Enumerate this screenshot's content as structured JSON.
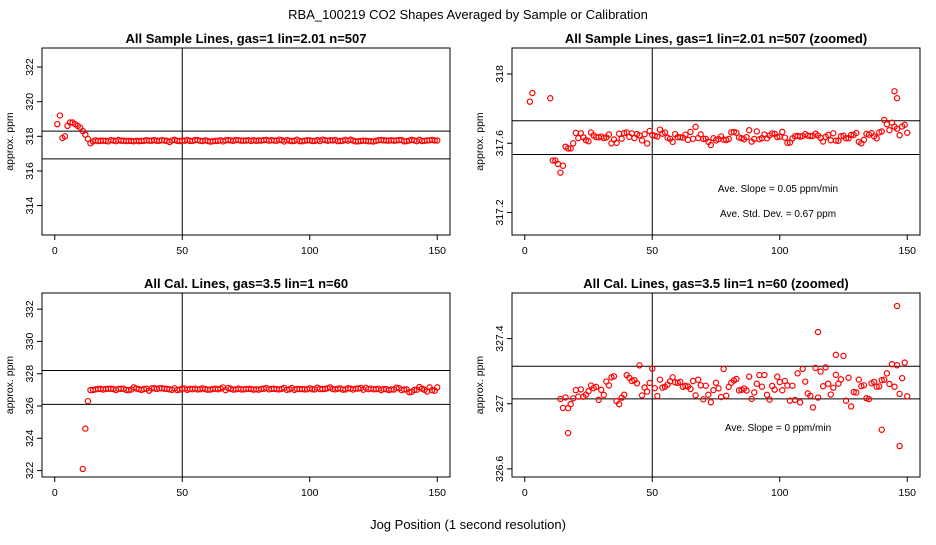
{
  "figure": {
    "title": "RBA_100219  CO2 Shapes Averaged by Sample or Calibration",
    "xlabel": "Jog Position (1 second resolution)"
  },
  "colors": {
    "points": "#ff0000",
    "lines": "#000000",
    "frame": "#000000"
  },
  "chart_data": [
    {
      "type": "scatter",
      "title": "All Sample Lines, gas=1 lin=2.01 n=507",
      "xlabel": "",
      "ylabel": "approx. ppm",
      "xlim": [
        -5,
        155
      ],
      "ylim": [
        312.3,
        323.1
      ],
      "xticks": [
        0,
        50,
        100,
        150
      ],
      "yticks": [
        314,
        316,
        318,
        320,
        322
      ],
      "hlines": [
        316.7,
        318.3
      ],
      "vline": 50,
      "annotations": [],
      "gen": {
        "kind": "sample",
        "seed": 11,
        "base": 317.75,
        "noise": 0.05
      }
    },
    {
      "type": "scatter",
      "title": "All Sample Lines, gas=1 lin=2.01 n=507 (zoomed)",
      "xlabel": "",
      "ylabel": "approx. ppm",
      "xlim": [
        -5,
        155
      ],
      "ylim": [
        317.07,
        318.15
      ],
      "xticks": [
        0,
        50,
        100,
        150
      ],
      "yticks": [
        317.2,
        317.6,
        318.0
      ],
      "hlines": [
        317.535,
        317.73
      ],
      "vline": 50,
      "annotations": [
        "Ave. Slope =  0.05  ppm/min",
        "Ave. Std. Dev. =  0.67  ppm"
      ],
      "gen": {
        "kind": "samplezoom",
        "seed": 23,
        "base": 317.64,
        "noise": 0.04
      }
    },
    {
      "type": "scatter",
      "title": "All Cal. Lines, gas=3.5 lin=1 n=60",
      "xlabel": "",
      "ylabel": "approx. ppm",
      "xlim": [
        -5,
        155
      ],
      "ylim": [
        321.6,
        333.0
      ],
      "xticks": [
        0,
        50,
        100,
        150
      ],
      "yticks": [
        322,
        324,
        326,
        328,
        330,
        332
      ],
      "hlines": [
        326.1,
        328.2
      ],
      "vline": 50,
      "annotations": [],
      "gen": {
        "kind": "cal",
        "seed": 37,
        "base": 327.05,
        "noise": 0.08
      }
    },
    {
      "type": "scatter",
      "title": "All Cal. Lines, gas=3.5 lin=1 n=60 (zoomed)",
      "xlabel": "",
      "ylabel": "approx. ppm",
      "xlim": [
        -5,
        155
      ],
      "ylim": [
        326.55,
        327.68
      ],
      "xticks": [
        0,
        50,
        100,
        150
      ],
      "yticks": [
        326.6,
        327.0,
        327.4
      ],
      "hlines": [
        327.03,
        327.23
      ],
      "vline": 50,
      "annotations": [
        "Ave. Slope =  0  ppm/min"
      ],
      "gen": {
        "kind": "calzoom",
        "seed": 51,
        "base": 327.11,
        "noise": 0.1
      }
    }
  ]
}
